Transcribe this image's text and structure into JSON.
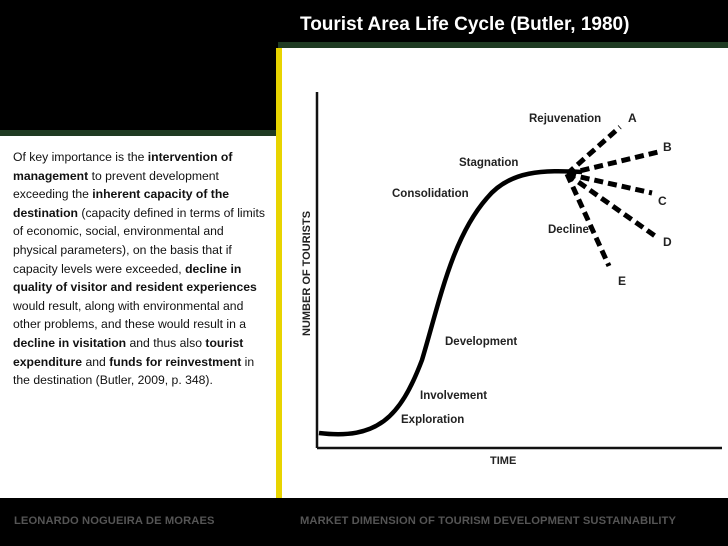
{
  "title": "Tourist Area Life Cycle (Butler, 1980)",
  "side_text": {
    "p1": "Of key importance is the ",
    "b1": "intervention of management",
    "p2": " to prevent development exceeding the ",
    "b2": "inherent capacity of the destination",
    "p3": " (capacity defined in terms of limits of economic, social, environmental and physical parameters), on the basis that if capacity levels were exceeded, ",
    "b3": "decline in quality of visitor and resident experiences",
    "p4": " would result, along with environmental and other problems, and these would result in a ",
    "b4": "decline in visitation",
    "p5": " and thus also ",
    "b5": "tourist expenditure",
    "p6": " and ",
    "b6": "funds for reinvestment",
    "p7": " in the destination (Butler, 2009, p. 348)."
  },
  "diagram": {
    "y_axis_label": "NUMBER OF TOURISTS",
    "x_axis_label": "TIME",
    "stages": {
      "exploration": "Exploration",
      "involvement": "Involvement",
      "development": "Development",
      "consolidation": "Consolidation",
      "stagnation": "Stagnation",
      "rejuvenation": "Rejuvenation",
      "decline": "Decline"
    },
    "scenarios": [
      "A",
      "B",
      "C",
      "D",
      "E"
    ]
  },
  "footer": {
    "left": "LEONARDO NOGUEIRA DE MORAES",
    "right": "MARKET DIMENSION OF TOURISM DEVELOPMENT SUSTAINABILITY"
  },
  "colors": {
    "accent": "#e8d400",
    "band": "#1f3b22"
  }
}
